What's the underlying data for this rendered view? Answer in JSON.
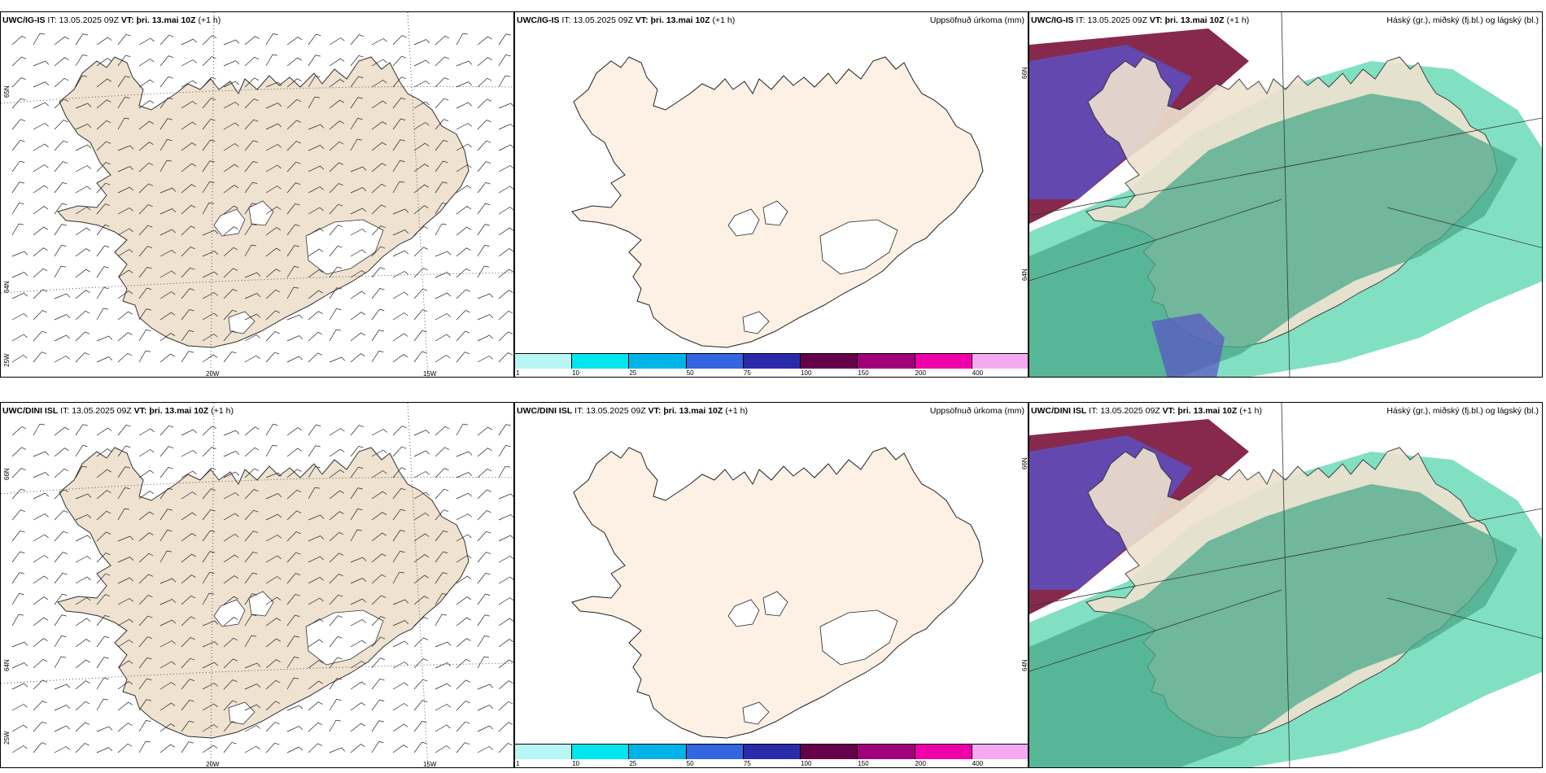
{
  "rows": [
    {
      "model": "UWC/IG-IS",
      "it_label": "IT:",
      "it_value": "13.05.2025 09Z",
      "vt_label": "VT:",
      "vt_value": "þri. 13.mai 10Z",
      "lead": "(+1 h)"
    },
    {
      "model": "UWC/DINI ISL",
      "it_label": "IT:",
      "it_value": "13.05.2025 09Z",
      "vt_label": "VT:",
      "vt_value": "þri. 13.mai 10Z",
      "lead": "(+1 h)"
    }
  ],
  "precip_title": "Uppsöfnuð úrkoma (mm)",
  "cloud_title": "Háský (gr.), miðský (fj.bl.) og lágský (bl.)",
  "lat_labels": [
    "65N",
    "64N"
  ],
  "lat_labels_top": [
    "66N",
    "64N"
  ],
  "lat_label_sw": "25W",
  "lon_labels": [
    "20W",
    "15W"
  ],
  "colorbar": {
    "levels": [
      "1",
      "10",
      "25",
      "50",
      "75",
      "100",
      "150",
      "200",
      "400"
    ],
    "colors": [
      "#b8f5f5",
      "#00e5ee",
      "#00b4e8",
      "#3366e0",
      "#2a2aaa",
      "#66004a",
      "#a0007a",
      "#ee00aa",
      "#f4aaf0"
    ]
  },
  "colors": {
    "land": "#efe2d0",
    "land_plain": "#fdf0e4",
    "cloud_low": "#4aa88a",
    "cloud_mid": "#1bc790",
    "cloud_high": "#5a50c8",
    "cloud_dark": "#7a1238"
  }
}
